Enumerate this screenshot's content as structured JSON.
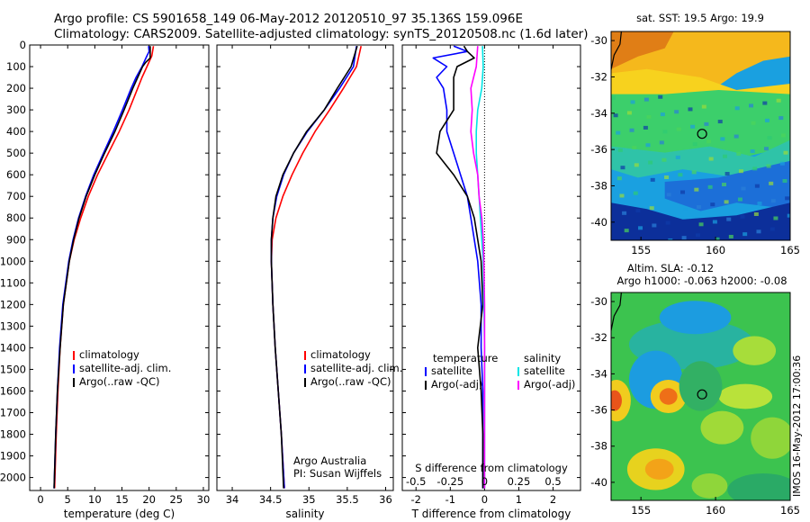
{
  "header": {
    "line1": "Argo profile: CS 5901658_149 06-May-2012 20120510_97 35.136S 159.096E",
    "line2": "Climatology: CARS2009. Satellite-adjusted climatology: synTS_20120508.nc (1.6d later)"
  },
  "colors": {
    "climatology": "#ff0000",
    "satellite": "#0000ff",
    "argo": "#000000",
    "satellite_s": "#00e5e5",
    "argo_s": "#ff00ff"
  },
  "chart_data": [
    {
      "type": "line",
      "id": "temperature",
      "xlabel": "temperature (deg C)",
      "ylabel": "",
      "xlim": [
        -2,
        31
      ],
      "ylim": [
        2060,
        0
      ],
      "xticks": [
        0,
        5,
        10,
        15,
        20,
        25,
        30
      ],
      "yticks": [
        0,
        100,
        200,
        300,
        400,
        500,
        600,
        700,
        800,
        900,
        1000,
        1100,
        1200,
        1300,
        1400,
        1500,
        1600,
        1700,
        1800,
        1900,
        2000
      ],
      "legend": [
        "climatology",
        "satellite-adj. clim.",
        "Argo(..raw -QC)"
      ],
      "series": [
        {
          "name": "climatology",
          "color": "#ff0000",
          "depth": [
            5,
            50,
            100,
            150,
            200,
            300,
            400,
            500,
            600,
            700,
            800,
            900,
            1000,
            1200,
            1400,
            1600,
            1800,
            2050
          ],
          "values": [
            20.8,
            20.5,
            19.6,
            18.7,
            17.9,
            16.3,
            14.5,
            12.5,
            10.5,
            8.8,
            7.4,
            6.2,
            5.3,
            4.2,
            3.6,
            3.2,
            2.9,
            2.6
          ]
        },
        {
          "name": "satellite-adj. clim.",
          "color": "#0000ff",
          "depth": [
            5,
            30,
            50,
            100,
            150,
            200,
            300,
            400,
            500,
            600,
            700,
            800,
            900,
            1000,
            1200,
            1400,
            1600,
            1800,
            2050
          ],
          "values": [
            19.9,
            20.0,
            19.6,
            18.7,
            17.6,
            16.7,
            15.1,
            13.4,
            11.6,
            9.8,
            8.3,
            7.0,
            6.0,
            5.2,
            4.1,
            3.5,
            3.1,
            2.8,
            2.5
          ]
        },
        {
          "name": "Argo(..raw -QC)",
          "color": "#000000",
          "depth": [
            5,
            60,
            80,
            100,
            150,
            200,
            300,
            400,
            500,
            600,
            700,
            800,
            900,
            1000,
            1200,
            1400,
            1600,
            1800,
            2050
          ],
          "values": [
            20.2,
            20.2,
            19.4,
            18.8,
            17.9,
            17.0,
            15.4,
            13.7,
            11.8,
            10.0,
            8.4,
            7.1,
            6.1,
            5.3,
            4.2,
            3.6,
            3.1,
            2.8,
            2.5
          ]
        }
      ]
    },
    {
      "type": "line",
      "id": "salinity",
      "xlabel": "salinity",
      "xlim": [
        33.8,
        36.1
      ],
      "ylim": [
        2060,
        0
      ],
      "xticks": [
        34,
        34.5,
        35,
        35.5,
        36
      ],
      "legend": [
        "climatology",
        "satellite-adj. clim.",
        "Argo(..raw -QC)"
      ],
      "credit1": "Argo Australia",
      "credit2": "PI: Susan Wijffels",
      "series": [
        {
          "name": "climatology",
          "color": "#ff0000",
          "depth": [
            5,
            100,
            200,
            300,
            400,
            500,
            600,
            700,
            800,
            900,
            1000,
            1200,
            1400,
            1600,
            1800,
            2050
          ],
          "values": [
            35.68,
            35.62,
            35.45,
            35.27,
            35.08,
            34.92,
            34.78,
            34.66,
            34.57,
            34.52,
            34.51,
            34.53,
            34.56,
            34.6,
            34.64,
            34.68
          ]
        },
        {
          "name": "satellite-adj. clim.",
          "color": "#0000ff",
          "depth": [
            5,
            100,
            200,
            300,
            400,
            500,
            600,
            700,
            800,
            900,
            1000,
            1200,
            1400,
            1600,
            1800,
            2050
          ],
          "values": [
            35.62,
            35.58,
            35.4,
            35.2,
            34.98,
            34.8,
            34.67,
            34.58,
            34.53,
            34.51,
            34.51,
            34.53,
            34.56,
            34.6,
            34.64,
            34.68
          ]
        },
        {
          "name": "Argo(..raw -QC)",
          "color": "#000000",
          "depth": [
            5,
            100,
            200,
            300,
            400,
            500,
            600,
            700,
            800,
            900,
            1000,
            1200,
            1400,
            1600,
            1800,
            2050
          ],
          "values": [
            35.63,
            35.55,
            35.37,
            35.2,
            34.97,
            34.8,
            34.66,
            34.57,
            34.53,
            34.51,
            34.51,
            34.53,
            34.56,
            34.6,
            34.64,
            34.67
          ]
        }
      ]
    },
    {
      "type": "line",
      "id": "differences",
      "xlabel": "T difference from climatology",
      "xlabel_top": "S difference from climatology",
      "xlim": [
        -2.4,
        2.8
      ],
      "ylim": [
        2060,
        0
      ],
      "xticks": [
        -2,
        -1,
        0,
        1,
        2
      ],
      "xticks_s": [
        "-0.5",
        "-0.25",
        "0",
        "0.25",
        "0.5"
      ],
      "legend_t_title": "temperature",
      "legend_s_title": "salinity",
      "legend_items": [
        "satellite",
        "Argo(-adj)",
        "satellite",
        "Argo(-adj)"
      ],
      "series": [
        {
          "name": "T satellite",
          "color": "#0000ff",
          "depth": [
            5,
            30,
            60,
            100,
            150,
            200,
            300,
            400,
            500,
            600,
            700,
            800,
            900,
            1000,
            1200,
            1400,
            1600,
            1800,
            2050
          ],
          "values": [
            -0.9,
            -0.5,
            -1.5,
            -1.1,
            -1.4,
            -1.2,
            -1.1,
            -1.1,
            -0.9,
            -0.7,
            -0.5,
            -0.4,
            -0.3,
            -0.2,
            -0.1,
            -0.1,
            -0.05,
            -0.05,
            -0.05
          ]
        },
        {
          "name": "T Argo(-adj)",
          "color": "#000000",
          "depth": [
            5,
            30,
            60,
            100,
            150,
            200,
            300,
            400,
            500,
            600,
            700,
            800,
            900,
            1000,
            1200,
            1400,
            1600,
            1800,
            2050
          ],
          "values": [
            -0.6,
            -0.5,
            -0.3,
            -0.8,
            -0.9,
            -0.9,
            -0.9,
            -1.3,
            -1.4,
            -0.9,
            -0.5,
            -0.3,
            -0.2,
            -0.1,
            -0.05,
            -0.2,
            -0.1,
            -0.05,
            -0.05
          ]
        },
        {
          "name": "S satellite",
          "color": "#00e5e5",
          "depth": [
            5,
            100,
            200,
            300,
            400,
            500,
            600,
            700,
            800,
            900,
            1000,
            1200,
            1400,
            1600,
            1800,
            2050
          ],
          "values": [
            -0.015,
            -0.01,
            -0.02,
            -0.05,
            -0.06,
            -0.06,
            -0.05,
            -0.04,
            -0.03,
            -0.02,
            -0.01,
            -0.005,
            0,
            0,
            0,
            0
          ]
        },
        {
          "name": "S Argo(-adj)",
          "color": "#ff00ff",
          "depth": [
            5,
            100,
            200,
            300,
            400,
            500,
            600,
            700,
            800,
            900,
            1000,
            1200,
            1400,
            1600,
            1800,
            2050
          ],
          "values": [
            -0.05,
            -0.06,
            -0.1,
            -0.09,
            -0.1,
            -0.08,
            -0.05,
            -0.04,
            -0.02,
            -0.01,
            -0.005,
            0,
            0,
            0,
            0,
            0
          ]
        }
      ]
    },
    {
      "type": "heatmap",
      "id": "sst-map",
      "title": "sat. SST: 19.5  Argo: 19.9",
      "xlim": [
        153,
        165
      ],
      "ylim": [
        -41,
        -29.5
      ],
      "xticks": [
        155,
        160,
        165
      ],
      "yticks": [
        -30,
        -32,
        -34,
        -36,
        -38,
        -40
      ],
      "marker": {
        "lon": 159.096,
        "lat": -35.136
      }
    },
    {
      "type": "heatmap",
      "id": "sla-map",
      "title": "Altim. SLA: -0.12",
      "title2": "Argo h1000: -0.063 h2000: -0.08",
      "xlim": [
        153,
        165
      ],
      "ylim": [
        -41,
        -29.5
      ],
      "xticks": [
        155,
        160,
        165
      ],
      "yticks": [
        -30,
        -32,
        -34,
        -36,
        -38,
        -40
      ],
      "marker": {
        "lon": 159.096,
        "lat": -35.136
      },
      "stamp": "IMOS 16-May-2012 17:00:36"
    }
  ]
}
